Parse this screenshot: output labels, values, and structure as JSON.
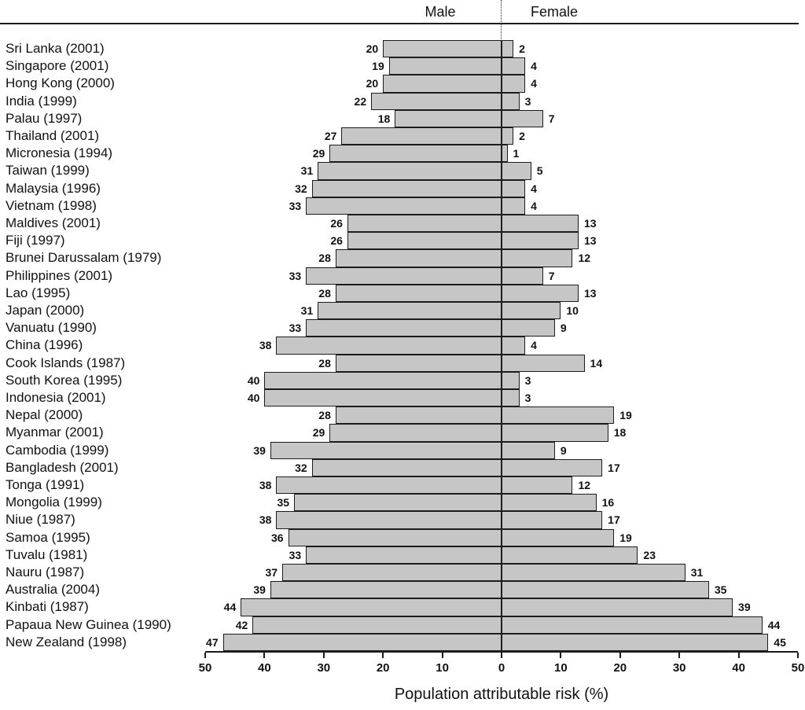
{
  "chart_data": {
    "type": "bar",
    "variant": "diverging-horizontal-pyramid",
    "title": "",
    "xlabel": "Population attributable risk (%)",
    "column_headers": {
      "left": "Male",
      "right": "Female"
    },
    "xlim": [
      -50,
      50
    ],
    "grid": false,
    "legend_position": "none",
    "bar_fill": "#c6c6c6",
    "bar_border": "#1c1c1c",
    "x_ticks": [
      {
        "value": -50,
        "label": "50"
      },
      {
        "value": -40,
        "label": "40"
      },
      {
        "value": -30,
        "label": "30"
      },
      {
        "value": -20,
        "label": "20"
      },
      {
        "value": -10,
        "label": "10"
      },
      {
        "value": 0,
        "label": "0"
      },
      {
        "value": 10,
        "label": "10"
      },
      {
        "value": 20,
        "label": "20"
      },
      {
        "value": 30,
        "label": "30"
      },
      {
        "value": 40,
        "label": "40"
      },
      {
        "value": 50,
        "label": "50"
      }
    ],
    "rows": [
      {
        "category": "Sri Lanka (2001)",
        "male": 20,
        "female": 2
      },
      {
        "category": "Singapore (2001)",
        "male": 19,
        "female": 4
      },
      {
        "category": "Hong Kong (2000)",
        "male": 20,
        "female": 4
      },
      {
        "category": "India (1999)",
        "male": 22,
        "female": 3
      },
      {
        "category": "Palau (1997)",
        "male": 18,
        "female": 7
      },
      {
        "category": "Thailand (2001)",
        "male": 27,
        "female": 2
      },
      {
        "category": "Micronesia (1994)",
        "male": 29,
        "female": 1
      },
      {
        "category": "Taiwan (1999)",
        "male": 31,
        "female": 5
      },
      {
        "category": "Malaysia (1996)",
        "male": 32,
        "female": 4
      },
      {
        "category": "Vietnam (1998)",
        "male": 33,
        "female": 4
      },
      {
        "category": "Maldives (2001)",
        "male": 26,
        "female": 13
      },
      {
        "category": "Fiji (1997)",
        "male": 26,
        "female": 13
      },
      {
        "category": "Brunei Darussalam (1979)",
        "male": 28,
        "female": 12
      },
      {
        "category": "Philippines (2001)",
        "male": 33,
        "female": 7
      },
      {
        "category": "Lao (1995)",
        "male": 28,
        "female": 13
      },
      {
        "category": "Japan (2000)",
        "male": 31,
        "female": 10
      },
      {
        "category": "Vanuatu (1990)",
        "male": 33,
        "female": 9
      },
      {
        "category": "China (1996)",
        "male": 38,
        "female": 4
      },
      {
        "category": "Cook Islands (1987)",
        "male": 28,
        "female": 14
      },
      {
        "category": "South Korea (1995)",
        "male": 40,
        "female": 3
      },
      {
        "category": "Indonesia (2001)",
        "male": 40,
        "female": 3
      },
      {
        "category": "Nepal (2000)",
        "male": 28,
        "female": 19
      },
      {
        "category": "Myanmar (2001)",
        "male": 29,
        "female": 18
      },
      {
        "category": "Cambodia (1999)",
        "male": 39,
        "female": 9
      },
      {
        "category": "Bangladesh (2001)",
        "male": 32,
        "female": 17
      },
      {
        "category": "Tonga (1991)",
        "male": 38,
        "female": 12
      },
      {
        "category": "Mongolia (1999)",
        "male": 35,
        "female": 16
      },
      {
        "category": "Niue (1987)",
        "male": 38,
        "female": 17
      },
      {
        "category": "Samoa (1995)",
        "male": 36,
        "female": 19
      },
      {
        "category": "Tuvalu (1981)",
        "male": 33,
        "female": 23
      },
      {
        "category": "Nauru (1987)",
        "male": 37,
        "female": 31
      },
      {
        "category": "Australia (2004)",
        "male": 39,
        "female": 35
      },
      {
        "category": "Kinbati (1987)",
        "male": 44,
        "female": 39
      },
      {
        "category": "Papaua New Guinea (1990)",
        "male": 42,
        "female": 44
      },
      {
        "category": "New Zealand (1998)",
        "male": 47,
        "female": 45
      }
    ]
  }
}
